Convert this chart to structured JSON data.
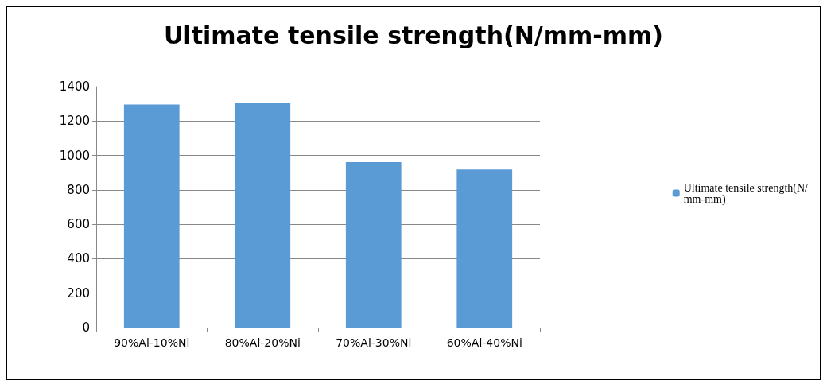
{
  "chart_data": {
    "type": "bar",
    "title": "Ultimate tensile strength(N/mm-mm)",
    "categories": [
      "90%Al-10%Ni",
      "80%Al-20%Ni",
      "70%Al-30%Ni",
      "60%Al-40%Ni"
    ],
    "series": [
      {
        "name": "Ultimate tensile strength(N/mm-mm)",
        "color": "#5b9bd5",
        "values": [
          1296,
          1303,
          961,
          918
        ]
      }
    ],
    "ylim": [
      0,
      1400
    ],
    "yticks": [
      0,
      200,
      400,
      600,
      800,
      1000,
      1200,
      1400
    ],
    "grid": "y",
    "legend": "right"
  }
}
